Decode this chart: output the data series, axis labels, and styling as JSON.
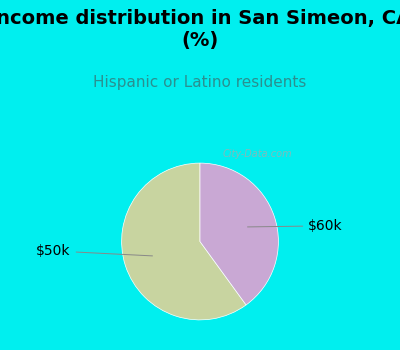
{
  "title": "Income distribution in San Simeon, CA\n(%)",
  "subtitle": "Hispanic or Latino residents",
  "slices": [
    {
      "label": "$50k",
      "value": 60,
      "color": "#c8d4a0"
    },
    {
      "label": "$60k",
      "value": 40,
      "color": "#c9a8d4"
    }
  ],
  "background_color": "#00efef",
  "chart_bg_color": "#e0f2e8",
  "title_fontsize": 14,
  "subtitle_fontsize": 11,
  "subtitle_color": "#2a9090",
  "label_fontsize": 10,
  "watermark": "City-Data.com"
}
